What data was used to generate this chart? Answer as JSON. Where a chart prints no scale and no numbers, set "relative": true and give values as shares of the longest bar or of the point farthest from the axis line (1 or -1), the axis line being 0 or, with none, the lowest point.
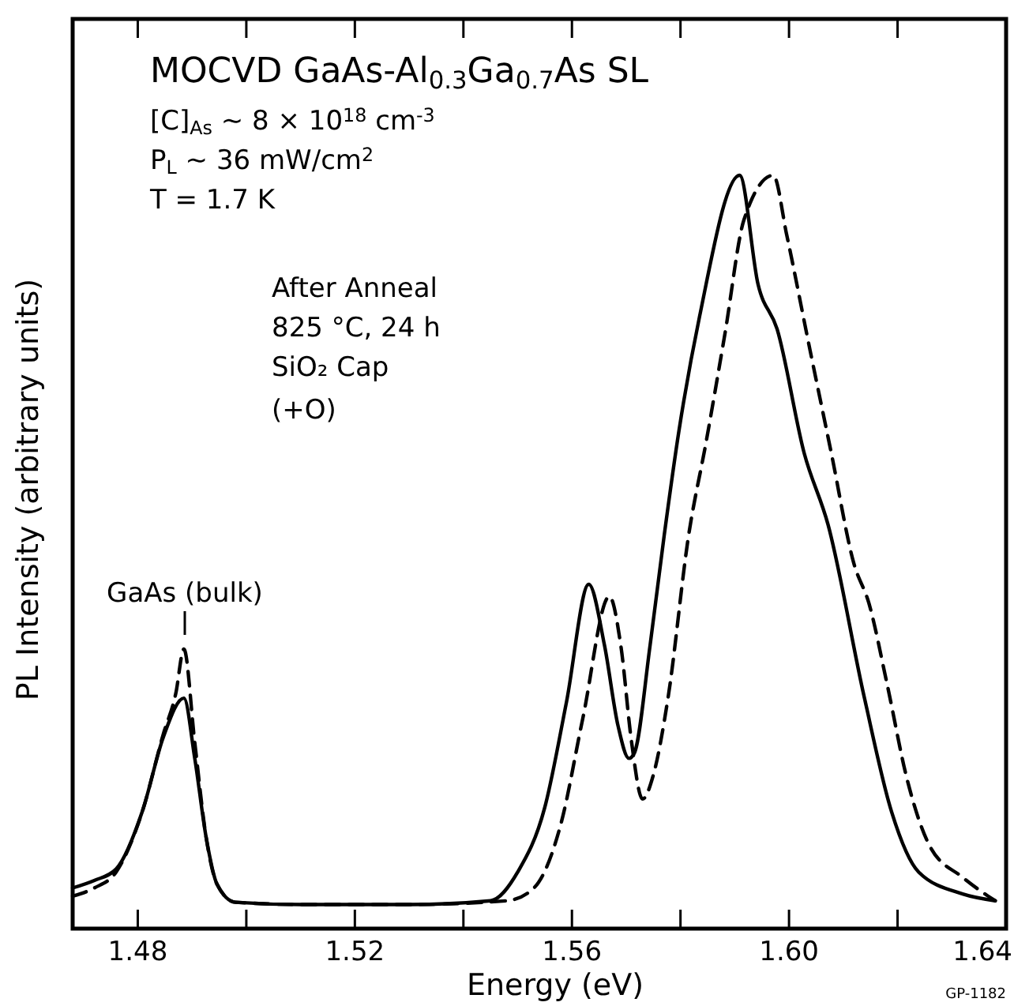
{
  "chart_data": {
    "type": "line",
    "title": "MOCVD GaAs-Al$_{0.3}$Ga$_{0.7}$As SL",
    "xlabel": "Energy (eV)",
    "ylabel": "PL Intensity (arbitrary units)",
    "relative": true,
    "tick_labels": "x",
    "xlim": [
      1.468,
      1.64
    ],
    "xticks": [
      1.48,
      {
        "value": 1.5,
        "label": null
      },
      1.52,
      {
        "value": 1.54,
        "label": null
      },
      1.56,
      {
        "value": 1.58,
        "label": null
      },
      {
        "value": 1.6,
        "label": "1.60"
      },
      {
        "value": 1.62,
        "label": null
      },
      1.64
    ],
    "annotations": [
      "[C]$_{As}$ ~ 8 × 10$^{18}$ cm$^{-3}$",
      "P$_{L}$ ~ 36 mW/cm$^{2}$",
      "T = 1.7 K",
      "After Anneal",
      "825 °C, 24 h",
      "SiO₂ Cap",
      "(+O)",
      "GaAs (bulk)",
      "GP-1182"
    ],
    "series": [
      {
        "color": "#000000",
        "line_style": "solid",
        "x": [
          1.468,
          1.472,
          1.476,
          1.4809,
          1.4847,
          1.4885,
          1.4905,
          1.4926,
          1.4946,
          1.498,
          1.51,
          1.53,
          1.545,
          1.55,
          1.555,
          1.559,
          1.5631,
          1.566,
          1.5685,
          1.5705,
          1.5715,
          1.5744,
          1.577,
          1.5797,
          1.5835,
          1.5909,
          1.5943,
          1.5978,
          1.6028,
          1.6072,
          1.6139,
          1.6189,
          1.6239,
          1.632,
          1.638
        ],
        "values": [
          0.054,
          0.064,
          0.079,
          0.157,
          0.254,
          0.306,
          0.226,
          0.121,
          0.059,
          0.035,
          0.032,
          0.032,
          0.037,
          0.075,
          0.161,
          0.301,
          0.457,
          0.376,
          0.269,
          0.226,
          0.233,
          0.376,
          0.522,
          0.66,
          0.812,
          1.0,
          0.855,
          0.796,
          0.631,
          0.536,
          0.306,
          0.155,
          0.075,
          0.046,
          0.037
        ]
      },
      {
        "color": "#000000",
        "line_style": "dashed",
        "x": [
          1.468,
          1.472,
          1.476,
          1.4809,
          1.4847,
          1.487,
          1.4885,
          1.4905,
          1.4926,
          1.4946,
          1.498,
          1.51,
          1.53,
          1.548,
          1.553,
          1.558,
          1.562,
          1.5669,
          1.569,
          1.571,
          1.573,
          1.575,
          1.5777,
          1.5815,
          1.5847,
          1.5882,
          1.5917,
          1.5971,
          1.5996,
          1.6037,
          1.6078,
          1.6119,
          1.6148,
          1.618,
          1.6218,
          1.6259,
          1.632,
          1.638
        ],
        "values": [
          0.043,
          0.054,
          0.075,
          0.157,
          0.258,
          0.312,
          0.371,
          0.247,
          0.121,
          0.059,
          0.035,
          0.032,
          0.032,
          0.037,
          0.054,
          0.14,
          0.279,
          0.441,
          0.376,
          0.247,
          0.172,
          0.204,
          0.306,
          0.522,
          0.645,
          0.79,
          0.941,
          1.0,
          0.92,
          0.774,
          0.631,
          0.486,
          0.43,
          0.327,
          0.197,
          0.11,
          0.068,
          0.037
        ]
      }
    ]
  }
}
